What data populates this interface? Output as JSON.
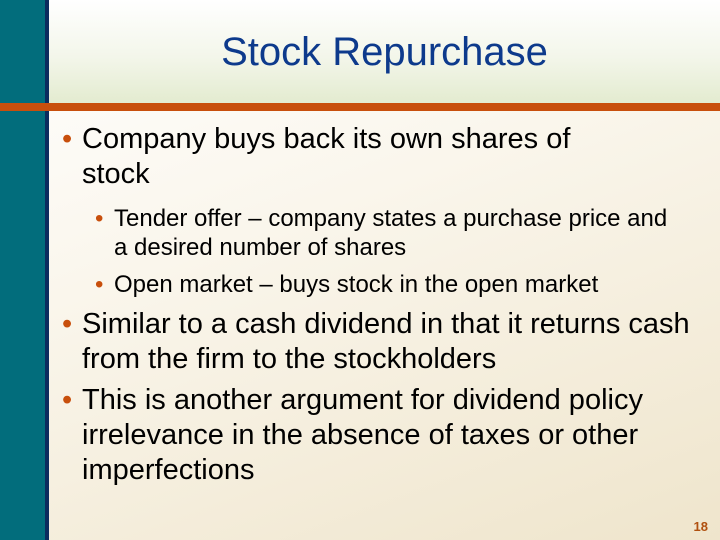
{
  "slide": {
    "title": "Stock Repurchase",
    "bullets": [
      {
        "text": "Company buys back its own shares of stock",
        "sub": [
          "Tender offer – company states a purchase price and a desired number of shares",
          "Open market – buys stock in the open market"
        ]
      },
      {
        "text": "Similar to a cash dividend in that it returns cash from the firm to the stockholders"
      },
      {
        "text": "This is another argument for dividend policy irrelevance in the absence of taxes or other imperfections"
      }
    ],
    "page_number": "18",
    "bullet_char": "•",
    "colors": {
      "accent": "#c84f0c",
      "title": "#0d3a8c",
      "sidebar": "#026d7c"
    }
  }
}
